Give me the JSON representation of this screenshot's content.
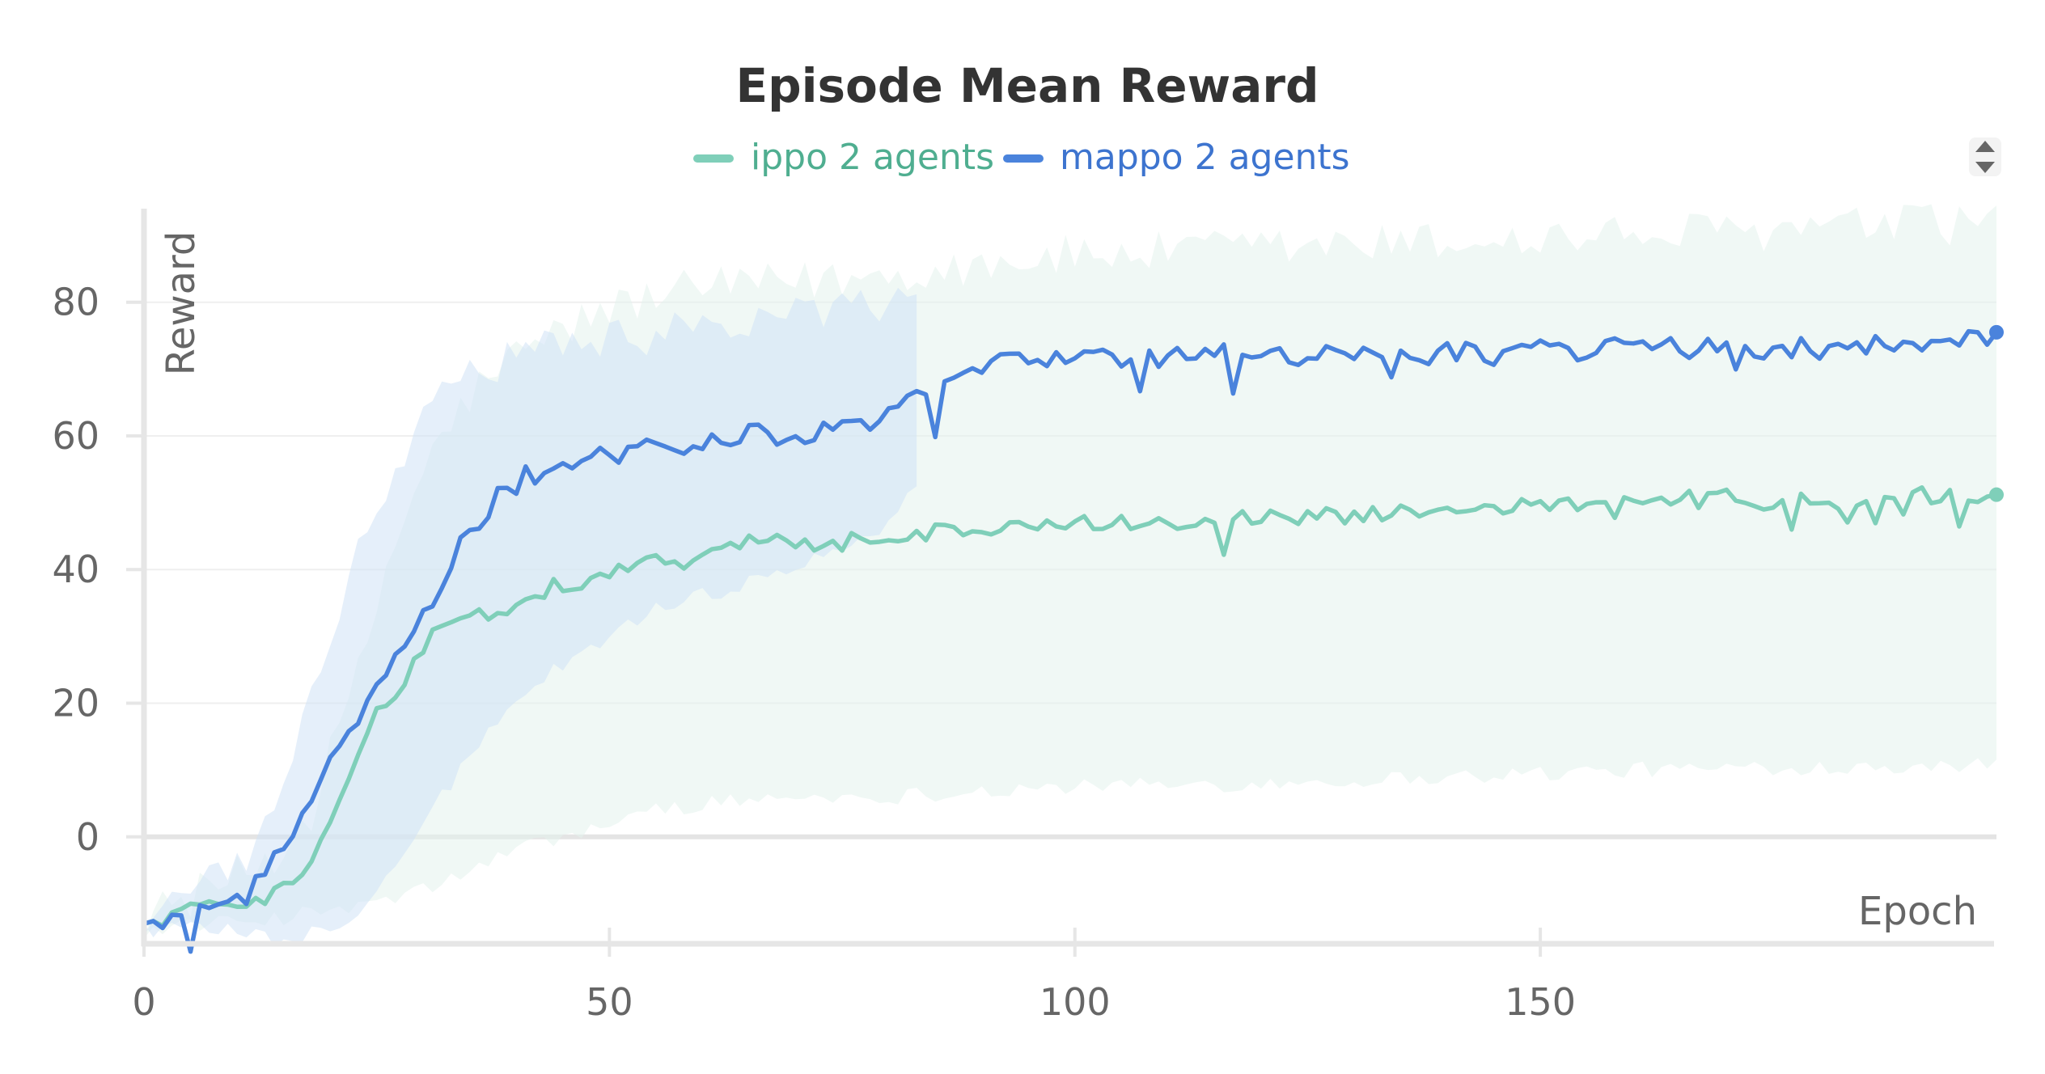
{
  "chart_data": {
    "type": "line",
    "title": "Episode Mean Reward",
    "xlabel": "Epoch",
    "ylabel": "Reward",
    "xlim": [
      0,
      199
    ],
    "ylim": [
      -16,
      94
    ],
    "x_ticks": [
      0,
      50,
      100,
      150
    ],
    "y_ticks": [
      0,
      20,
      40,
      60,
      80
    ],
    "grid": true,
    "legend_position": "top-center",
    "series": [
      {
        "name": "ippo 2 agents",
        "color": "#7fcfb9",
        "band_color": "#e3f2ed",
        "band_opacity": 0.55,
        "anchors": [
          [
            0,
            -13
          ],
          [
            5,
            -11
          ],
          [
            10,
            -10
          ],
          [
            15,
            -8
          ],
          [
            18,
            -3
          ],
          [
            20,
            4
          ],
          [
            23,
            12
          ],
          [
            25,
            18
          ],
          [
            28,
            24
          ],
          [
            31,
            30
          ],
          [
            35,
            33
          ],
          [
            40,
            35
          ],
          [
            45,
            38
          ],
          [
            50,
            39
          ],
          [
            53,
            42
          ],
          [
            57,
            41
          ],
          [
            60,
            42
          ],
          [
            65,
            44
          ],
          [
            70,
            44
          ],
          [
            75,
            44
          ],
          [
            80,
            45
          ],
          [
            90,
            46
          ],
          [
            100,
            47
          ],
          [
            110,
            47
          ],
          [
            120,
            48
          ],
          [
            130,
            48
          ],
          [
            140,
            49
          ],
          [
            150,
            50
          ],
          [
            160,
            50
          ],
          [
            170,
            51
          ],
          [
            180,
            50
          ],
          [
            190,
            51
          ],
          [
            199,
            51.2
          ]
        ],
        "band_upper_anchors": [
          [
            0,
            -12
          ],
          [
            5,
            -9
          ],
          [
            10,
            -6
          ],
          [
            15,
            -2
          ],
          [
            18,
            4
          ],
          [
            20,
            12
          ],
          [
            23,
            24
          ],
          [
            26,
            40
          ],
          [
            30,
            55
          ],
          [
            35,
            66
          ],
          [
            40,
            72
          ],
          [
            45,
            76
          ],
          [
            50,
            79
          ],
          [
            55,
            81
          ],
          [
            60,
            82
          ],
          [
            70,
            83
          ],
          [
            80,
            84
          ],
          [
            90,
            86
          ],
          [
            100,
            87
          ],
          [
            120,
            88
          ],
          [
            140,
            89
          ],
          [
            160,
            90
          ],
          [
            180,
            91
          ],
          [
            199,
            92
          ]
        ],
        "band_lower_anchors": [
          [
            0,
            -14
          ],
          [
            5,
            -13
          ],
          [
            10,
            -13
          ],
          [
            15,
            -12
          ],
          [
            20,
            -11
          ],
          [
            25,
            -10
          ],
          [
            30,
            -8
          ],
          [
            35,
            -5
          ],
          [
            40,
            -2
          ],
          [
            45,
            0
          ],
          [
            50,
            2
          ],
          [
            55,
            4
          ],
          [
            60,
            5
          ],
          [
            70,
            6
          ],
          [
            80,
            6
          ],
          [
            90,
            7
          ],
          [
            100,
            7.5
          ],
          [
            120,
            8
          ],
          [
            140,
            9
          ],
          [
            160,
            10
          ],
          [
            180,
            10.5
          ],
          [
            199,
            11
          ]
        ]
      },
      {
        "name": "mappo 2 agents",
        "color": "#4a83dc",
        "band_color": "#cfe1f5",
        "band_opacity": 0.55,
        "band_end": 83,
        "anchors": [
          [
            0,
            -13
          ],
          [
            5,
            -11
          ],
          [
            10,
            -10
          ],
          [
            13,
            -6
          ],
          [
            15,
            -1
          ],
          [
            17,
            3
          ],
          [
            19,
            9
          ],
          [
            21,
            12
          ],
          [
            23,
            18
          ],
          [
            25,
            24
          ],
          [
            27,
            27
          ],
          [
            29,
            31
          ],
          [
            31,
            35
          ],
          [
            33,
            41
          ],
          [
            35,
            46
          ],
          [
            37,
            49
          ],
          [
            39,
            52
          ],
          [
            41,
            54
          ],
          [
            43,
            55
          ],
          [
            45,
            56
          ],
          [
            50,
            57
          ],
          [
            55,
            58
          ],
          [
            60,
            59
          ],
          [
            65,
            60
          ],
          [
            70,
            60
          ],
          [
            75,
            61
          ],
          [
            80,
            63
          ],
          [
            83,
            65
          ],
          [
            86,
            68
          ],
          [
            88,
            70
          ],
          [
            90,
            71
          ],
          [
            95,
            71
          ],
          [
            100,
            71
          ],
          [
            110,
            72
          ],
          [
            120,
            72
          ],
          [
            130,
            72
          ],
          [
            140,
            72.5
          ],
          [
            150,
            73
          ],
          [
            160,
            73
          ],
          [
            170,
            73
          ],
          [
            180,
            73
          ],
          [
            190,
            73.5
          ],
          [
            199,
            75.5
          ]
        ],
        "band_upper_anchors": [
          [
            0,
            -12
          ],
          [
            5,
            -9
          ],
          [
            10,
            -5
          ],
          [
            13,
            2
          ],
          [
            15,
            10
          ],
          [
            17,
            18
          ],
          [
            19,
            26
          ],
          [
            21,
            34
          ],
          [
            23,
            42
          ],
          [
            25,
            50
          ],
          [
            27,
            56
          ],
          [
            30,
            62
          ],
          [
            33,
            67
          ],
          [
            36,
            70
          ],
          [
            40,
            72
          ],
          [
            45,
            73
          ],
          [
            50,
            74
          ],
          [
            55,
            75
          ],
          [
            60,
            76
          ],
          [
            65,
            77
          ],
          [
            70,
            78
          ],
          [
            75,
            79
          ],
          [
            80,
            80
          ],
          [
            83,
            81
          ]
        ],
        "band_lower_anchors": [
          [
            0,
            -14
          ],
          [
            5,
            -13
          ],
          [
            10,
            -14
          ],
          [
            13,
            -15
          ],
          [
            15,
            -15.5
          ],
          [
            17,
            -15
          ],
          [
            20,
            -14
          ],
          [
            23,
            -11
          ],
          [
            26,
            -6
          ],
          [
            29,
            0
          ],
          [
            32,
            6
          ],
          [
            35,
            12
          ],
          [
            38,
            17
          ],
          [
            41,
            22
          ],
          [
            45,
            26
          ],
          [
            50,
            30
          ],
          [
            55,
            34
          ],
          [
            60,
            36
          ],
          [
            65,
            38
          ],
          [
            70,
            40
          ],
          [
            75,
            43
          ],
          [
            80,
            47
          ],
          [
            83,
            52
          ]
        ]
      }
    ]
  },
  "ui": {
    "scroll_icon": "updown-arrows-icon",
    "axis_color": "#e6e6e6",
    "grid_color": "#efefef",
    "text_color": "#666666",
    "title_color": "#333333"
  }
}
